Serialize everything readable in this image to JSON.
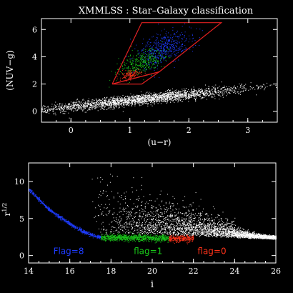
{
  "figure": {
    "title": "XMMLSS : Star–Galaxy classification",
    "background": "#000000",
    "foreground": "#ffffff"
  },
  "colors": {
    "galaxy": "#ffffff",
    "flag8": "#1e3cff",
    "flag1": "#19c819",
    "flag0": "#ff3219",
    "selection_box": "#e02020"
  },
  "chart_data": [
    {
      "type": "scatter",
      "title": "XMMLSS : Star–Galaxy classification",
      "xlabel": "(u−r)",
      "ylabel": "(NUV−g)",
      "xlim": [
        -0.5,
        3.5
      ],
      "ylim": [
        -0.8,
        6.8
      ],
      "xticks": [
        0,
        1,
        2,
        3
      ],
      "yticks": [
        0,
        2,
        4,
        6
      ],
      "grid": false,
      "selection_polygon": {
        "x": [
          0.7,
          1.5,
          2.55,
          1.2,
          0.7,
          0.7
        ],
        "y": [
          2.0,
          2.9,
          6.5,
          6.5,
          2.0,
          2.0
        ]
      },
      "selection_inner": {
        "x": [
          0.7,
          1.5,
          1.2,
          0.7
        ],
        "y": [
          2.0,
          2.9,
          2.0,
          2.0
        ]
      },
      "series": [
        {
          "color_key": "galaxy",
          "cloud": {
            "center": [
              1.2,
              0.9
            ],
            "spread": [
              0.9,
              0.55
            ],
            "tilt": 0.35
          }
        },
        {
          "color_key": "flag8",
          "cloud": {
            "center": [
              1.55,
              4.6
            ],
            "spread": [
              0.55,
              1.4
            ],
            "tilt": 1.6
          }
        },
        {
          "color_key": "flag1",
          "cloud": {
            "center": [
              1.2,
              3.6
            ],
            "spread": [
              0.45,
              1.0
            ],
            "tilt": 1.5
          }
        },
        {
          "color_key": "flag0",
          "cloud": {
            "center": [
              1.0,
              2.7
            ],
            "spread": [
              0.2,
              0.35
            ],
            "tilt": 1.2
          }
        }
      ]
    },
    {
      "type": "scatter",
      "xlabel": "i",
      "ylabel": "r",
      "ylabel_sup": "1/2",
      "xlim": [
        14,
        26
      ],
      "ylim": [
        -1,
        12.5
      ],
      "xticks": [
        14,
        16,
        18,
        20,
        22,
        24,
        26
      ],
      "yticks": [
        0,
        5,
        10
      ],
      "grid": false,
      "stellar_locus": {
        "x": [
          14,
          15,
          16,
          16.6,
          17.2,
          17.5,
          20,
          22,
          24,
          26
        ],
        "y": [
          9,
          6.2,
          4.3,
          3.3,
          2.7,
          2.5,
          2.4,
          2.3,
          2.1,
          1.9
        ]
      },
      "annotations": [
        {
          "text": "Flag=8",
          "x": 15.2,
          "y": 0.2,
          "color_key": "flag8"
        },
        {
          "text": "flag=1",
          "x": 19.1,
          "y": 0.2,
          "color_key": "flag1"
        },
        {
          "text": "flag=0",
          "x": 22.2,
          "y": 0.2,
          "color_key": "flag0"
        }
      ],
      "series": [
        {
          "color_key": "flag8",
          "i_range": [
            14.0,
            17.5
          ]
        },
        {
          "color_key": "flag1",
          "i_range": [
            17.5,
            20.8
          ]
        },
        {
          "color_key": "flag0",
          "i_range": [
            20.8,
            22.0
          ]
        },
        {
          "color_key": "galaxy",
          "i_range": [
            17.0,
            26.0
          ]
        }
      ]
    }
  ]
}
